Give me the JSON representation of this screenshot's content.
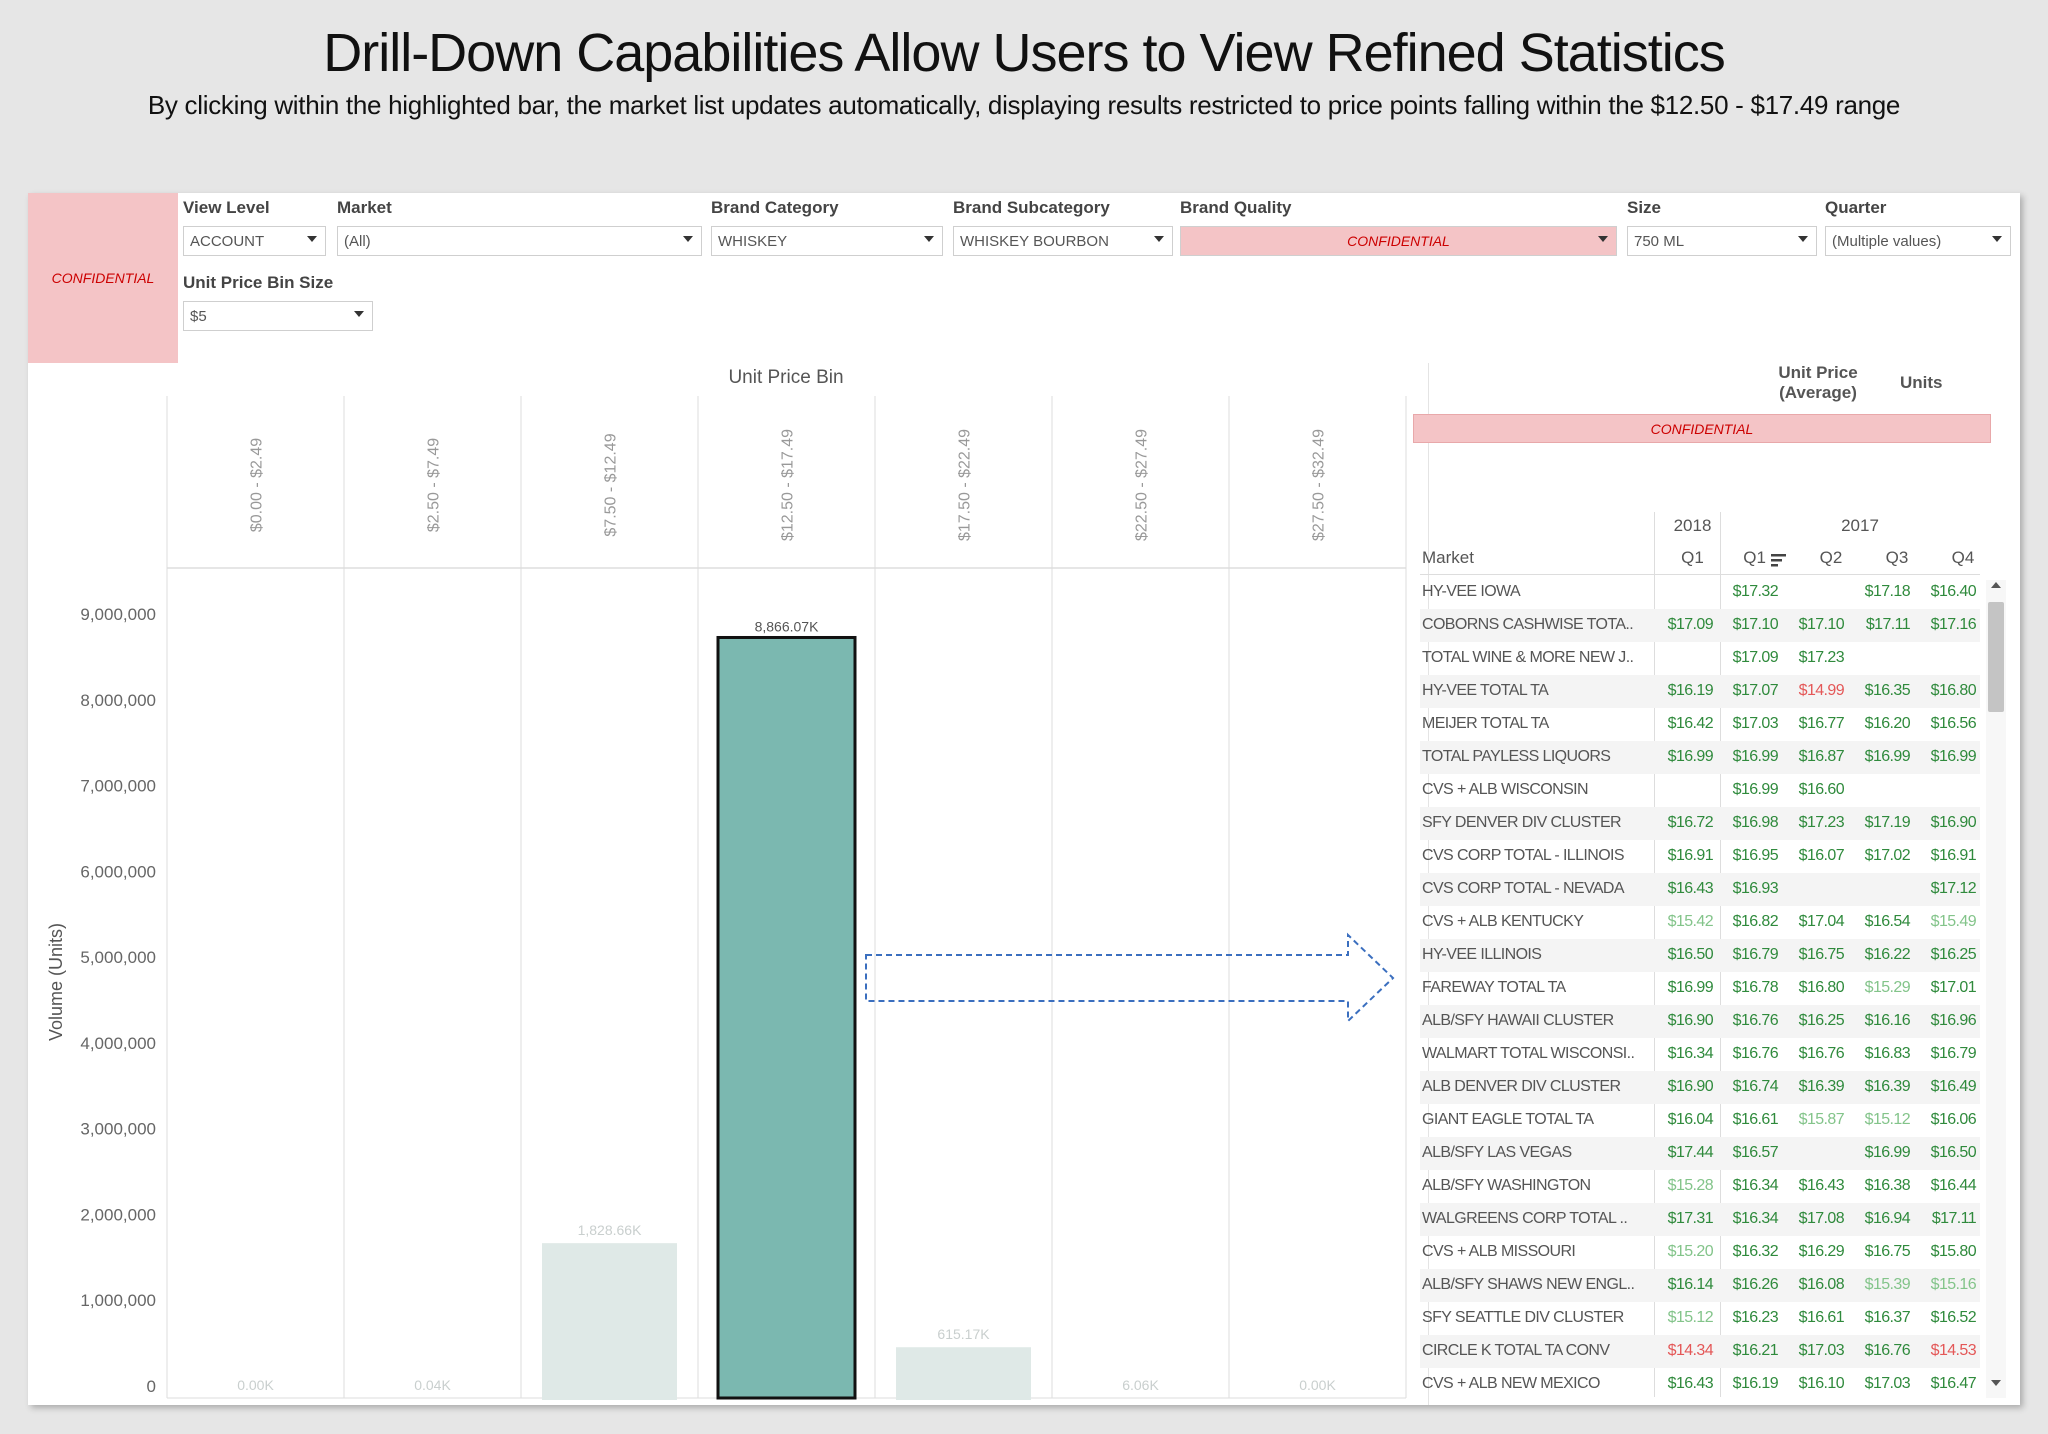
{
  "title": "Drill-Down Capabilities Allow Users to View Refined Statistics",
  "subtitle": "By clicking within the highlighted bar, the market list updates automatically, displaying results restricted to price points falling within the $12.50 - $17.49 range",
  "confidential_label": "CONFIDENTIAL",
  "filters": {
    "view_level": {
      "label": "View Level",
      "value": "ACCOUNT"
    },
    "market": {
      "label": "Market",
      "value": "(All)"
    },
    "brand_category": {
      "label": "Brand Category",
      "value": "WHISKEY"
    },
    "brand_subcategory": {
      "label": "Brand Subcategory",
      "value": "WHISKEY BOURBON"
    },
    "brand_quality": {
      "label": "Brand Quality",
      "value": "CONFIDENTIAL"
    },
    "size": {
      "label": "Size",
      "value": "750 ML"
    },
    "quarter": {
      "label": "Quarter",
      "value": "(Multiple values)"
    },
    "unit_price_bin_size": {
      "label": "Unit Price Bin Size",
      "value": "$5"
    }
  },
  "chart_data": {
    "type": "bar",
    "title": "Unit Price Bin",
    "ylabel": "Volume (Units)",
    "ylim": [
      0,
      9000000
    ],
    "yticks": [
      "0",
      "1,000,000",
      "2,000,000",
      "3,000,000",
      "4,000,000",
      "5,000,000",
      "6,000,000",
      "7,000,000",
      "8,000,000",
      "9,000,000"
    ],
    "categories": [
      "$0.00 - $2.49",
      "$2.50 - $7.49",
      "$7.50 - $12.49",
      "$12.50 - $17.49",
      "$17.50 - $22.49",
      "$22.50 - $27.49",
      "$27.50 - $32.49"
    ],
    "values": [
      0,
      40,
      1828660,
      8866070,
      615170,
      6060,
      0
    ],
    "value_labels": [
      "0.00K",
      "0.04K",
      "1,828.66K",
      "8,866.07K",
      "615.17K",
      "6.06K",
      "0.00K"
    ],
    "highlighted_index": 3,
    "colors": {
      "highlight": "#7bb8b0",
      "muted": "#dfe9e7"
    }
  },
  "table": {
    "header": {
      "unit_price": "Unit Price (Average)",
      "units": "Units",
      "confidential": "CONFIDENTIAL",
      "market": "Market",
      "year_2018": "2018",
      "year_2017": "2017",
      "q1_2018": "Q1",
      "q1": "Q1",
      "q2": "Q2",
      "q3": "Q3",
      "q4": "Q4"
    },
    "rows": [
      {
        "market": "HY-VEE IOWA",
        "v": [
          "",
          "$17.32",
          "",
          "$17.18",
          "$16.40"
        ],
        "c": [
          "",
          "g",
          "",
          "g",
          "g"
        ]
      },
      {
        "market": "COBORNS CASHWISE TOTA..",
        "v": [
          "$17.09",
          "$17.10",
          "$17.10",
          "$17.11",
          "$17.16"
        ],
        "c": [
          "g",
          "g",
          "g",
          "g",
          "g"
        ]
      },
      {
        "market": "TOTAL WINE & MORE NEW J..",
        "v": [
          "",
          "$17.09",
          "$17.23",
          "",
          ""
        ],
        "c": [
          "",
          "g",
          "g",
          "",
          ""
        ]
      },
      {
        "market": "HY-VEE TOTAL TA",
        "v": [
          "$16.19",
          "$17.07",
          "$14.99",
          "$16.35",
          "$16.80"
        ],
        "c": [
          "g",
          "g",
          "r",
          "g",
          "g"
        ]
      },
      {
        "market": "MEIJER TOTAL TA",
        "v": [
          "$16.42",
          "$17.03",
          "$16.77",
          "$16.20",
          "$16.56"
        ],
        "c": [
          "g",
          "g",
          "g",
          "g",
          "g"
        ]
      },
      {
        "market": "TOTAL PAYLESS LIQUORS",
        "v": [
          "$16.99",
          "$16.99",
          "$16.87",
          "$16.99",
          "$16.99"
        ],
        "c": [
          "g",
          "g",
          "g",
          "g",
          "g"
        ]
      },
      {
        "market": "CVS + ALB WISCONSIN",
        "v": [
          "",
          "$16.99",
          "$16.60",
          "",
          ""
        ],
        "c": [
          "",
          "g",
          "g",
          "",
          ""
        ]
      },
      {
        "market": "SFY DENVER DIV CLUSTER",
        "v": [
          "$16.72",
          "$16.98",
          "$17.23",
          "$17.19",
          "$16.90"
        ],
        "c": [
          "g",
          "g",
          "g",
          "g",
          "g"
        ]
      },
      {
        "market": "CVS CORP TOTAL - ILLINOIS",
        "v": [
          "$16.91",
          "$16.95",
          "$16.07",
          "$17.02",
          "$16.91"
        ],
        "c": [
          "g",
          "g",
          "g",
          "g",
          "g"
        ]
      },
      {
        "market": "CVS CORP TOTAL - NEVADA",
        "v": [
          "$16.43",
          "$16.93",
          "",
          "",
          "$17.12"
        ],
        "c": [
          "g",
          "g",
          "",
          "",
          "g"
        ]
      },
      {
        "market": "CVS + ALB KENTUCKY",
        "v": [
          "$15.42",
          "$16.82",
          "$17.04",
          "$16.54",
          "$15.49"
        ],
        "c": [
          "l",
          "g",
          "g",
          "g",
          "l"
        ]
      },
      {
        "market": "HY-VEE ILLINOIS",
        "v": [
          "$16.50",
          "$16.79",
          "$16.75",
          "$16.22",
          "$16.25"
        ],
        "c": [
          "g",
          "g",
          "g",
          "g",
          "g"
        ]
      },
      {
        "market": "FAREWAY TOTAL TA",
        "v": [
          "$16.99",
          "$16.78",
          "$16.80",
          "$15.29",
          "$17.01"
        ],
        "c": [
          "g",
          "g",
          "g",
          "l",
          "g"
        ]
      },
      {
        "market": "ALB/SFY HAWAII CLUSTER",
        "v": [
          "$16.90",
          "$16.76",
          "$16.25",
          "$16.16",
          "$16.96"
        ],
        "c": [
          "g",
          "g",
          "g",
          "g",
          "g"
        ]
      },
      {
        "market": "WALMART TOTAL WISCONSI..",
        "v": [
          "$16.34",
          "$16.76",
          "$16.76",
          "$16.83",
          "$16.79"
        ],
        "c": [
          "g",
          "g",
          "g",
          "g",
          "g"
        ]
      },
      {
        "market": "ALB DENVER DIV CLUSTER",
        "v": [
          "$16.90",
          "$16.74",
          "$16.39",
          "$16.39",
          "$16.49"
        ],
        "c": [
          "g",
          "g",
          "g",
          "g",
          "g"
        ]
      },
      {
        "market": "GIANT EAGLE TOTAL TA",
        "v": [
          "$16.04",
          "$16.61",
          "$15.87",
          "$15.12",
          "$16.06"
        ],
        "c": [
          "g",
          "g",
          "l",
          "l",
          "g"
        ]
      },
      {
        "market": "ALB/SFY LAS VEGAS",
        "v": [
          "$17.44",
          "$16.57",
          "",
          "$16.99",
          "$16.50"
        ],
        "c": [
          "g",
          "g",
          "",
          "g",
          "g"
        ]
      },
      {
        "market": "ALB/SFY WASHINGTON",
        "v": [
          "$15.28",
          "$16.34",
          "$16.43",
          "$16.38",
          "$16.44"
        ],
        "c": [
          "l",
          "g",
          "g",
          "g",
          "g"
        ]
      },
      {
        "market": "WALGREENS CORP TOTAL ..",
        "v": [
          "$17.31",
          "$16.34",
          "$17.08",
          "$16.94",
          "$17.11"
        ],
        "c": [
          "g",
          "g",
          "g",
          "g",
          "g"
        ]
      },
      {
        "market": "CVS + ALB MISSOURI",
        "v": [
          "$15.20",
          "$16.32",
          "$16.29",
          "$16.75",
          "$15.80"
        ],
        "c": [
          "l",
          "g",
          "g",
          "g",
          "g"
        ]
      },
      {
        "market": "ALB/SFY SHAWS NEW ENGL..",
        "v": [
          "$16.14",
          "$16.26",
          "$16.08",
          "$15.39",
          "$15.16"
        ],
        "c": [
          "g",
          "g",
          "g",
          "l",
          "l"
        ]
      },
      {
        "market": "SFY SEATTLE DIV CLUSTER",
        "v": [
          "$15.12",
          "$16.23",
          "$16.61",
          "$16.37",
          "$16.52"
        ],
        "c": [
          "l",
          "g",
          "g",
          "g",
          "g"
        ]
      },
      {
        "market": "CIRCLE K TOTAL TA CONV",
        "v": [
          "$14.34",
          "$16.21",
          "$17.03",
          "$16.76",
          "$14.53"
        ],
        "c": [
          "r",
          "g",
          "g",
          "g",
          "r"
        ]
      },
      {
        "market": "CVS + ALB NEW MEXICO",
        "v": [
          "$16.43",
          "$16.19",
          "$16.10",
          "$17.03",
          "$16.47"
        ],
        "c": [
          "g",
          "g",
          "g",
          "g",
          "g"
        ]
      }
    ]
  }
}
